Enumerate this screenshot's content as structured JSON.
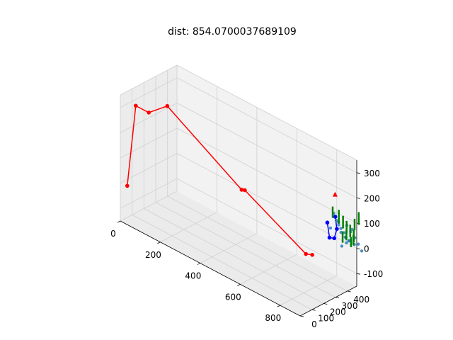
{
  "chart_data": {
    "type": "scatter",
    "projection": "3d",
    "title": "dist: 854.0700037689109",
    "grid": true,
    "xlim": [
      0,
      900
    ],
    "ylim": [
      0,
      480
    ],
    "zlim": [
      -150,
      350
    ],
    "x_ticks": [
      "0",
      "200",
      "400",
      "600",
      "800"
    ],
    "y_ticks": [
      "0",
      "100",
      "200",
      "300",
      "400"
    ],
    "z_ticks": [
      "-100",
      "0",
      "100",
      "200",
      "300"
    ],
    "colors": {
      "route": "#ff0000",
      "local_route": "#0000ff",
      "points": "#1f77b4",
      "bars": "#008000",
      "marker": "#ff0000",
      "pane": "#f2f2f2",
      "grid": "#d0d0d0"
    },
    "series": [
      {
        "style": "red-route",
        "points": [
          [
            30,
            8,
            0
          ],
          [
            30,
            80,
            300
          ],
          [
            95,
            80,
            300
          ],
          [
            170,
            110,
            350
          ],
          [
            430,
            300,
            80
          ],
          [
            440,
            310,
            80
          ],
          [
            740,
            320,
            -50
          ],
          [
            760,
            340,
            -50
          ]
        ]
      },
      {
        "style": "blue-route",
        "points": [
          [
            800,
            400,
            80
          ],
          [
            805,
            410,
            20
          ],
          [
            820,
            425,
            20
          ],
          [
            830,
            430,
            60
          ],
          [
            828,
            420,
            110
          ]
        ]
      },
      {
        "style": "scatter",
        "points": [
          [
            820,
            420,
            120
          ],
          [
            830,
            425,
            95
          ],
          [
            845,
            420,
            85
          ],
          [
            850,
            430,
            70
          ],
          [
            860,
            440,
            55
          ],
          [
            870,
            440,
            40
          ],
          [
            880,
            450,
            30
          ],
          [
            900,
            460,
            20
          ],
          [
            845,
            440,
            50
          ],
          [
            860,
            450,
            35
          ],
          [
            875,
            455,
            25
          ],
          [
            860,
            460,
            10
          ],
          [
            880,
            430,
            95
          ],
          [
            890,
            445,
            70
          ],
          [
            850,
            410,
            100
          ],
          [
            810,
            410,
            60
          ],
          [
            900,
            440,
            85
          ],
          [
            905,
            455,
            50
          ],
          [
            840,
            455,
            -10
          ],
          [
            920,
            460,
            30
          ],
          [
            925,
            480,
            0
          ]
        ]
      },
      {
        "style": "bars",
        "segments": [
          [
            [
              815,
              420,
              100
            ],
            [
              815,
              420,
              145
            ]
          ],
          [
            [
              840,
              430,
              85
            ],
            [
              840,
              430,
              140
            ]
          ],
          [
            [
              855,
              440,
              70
            ],
            [
              855,
              440,
              120
            ]
          ],
          [
            [
              870,
              445,
              55
            ],
            [
              870,
              445,
              105
            ]
          ],
          [
            [
              885,
              450,
              45
            ],
            [
              885,
              450,
              95
            ]
          ],
          [
            [
              900,
              455,
              30
            ],
            [
              900,
              455,
              80
            ]
          ],
          [
            [
              860,
              460,
              20
            ],
            [
              860,
              460,
              60
            ]
          ],
          [
            [
              895,
              460,
              15
            ],
            [
              895,
              460,
              55
            ]
          ],
          [
            [
              910,
              445,
              85
            ],
            [
              910,
              445,
              130
            ]
          ],
          [
            [
              925,
              455,
              110
            ],
            [
              925,
              455,
              160
            ]
          ],
          [
            [
              850,
              445,
              10
            ],
            [
              850,
              445,
              55
            ]
          ],
          [
            [
              880,
              465,
              0
            ],
            [
              880,
              465,
              40
            ]
          ]
        ]
      },
      {
        "style": "marker",
        "points": [
          [
            830,
            415,
            200
          ]
        ]
      }
    ]
  }
}
